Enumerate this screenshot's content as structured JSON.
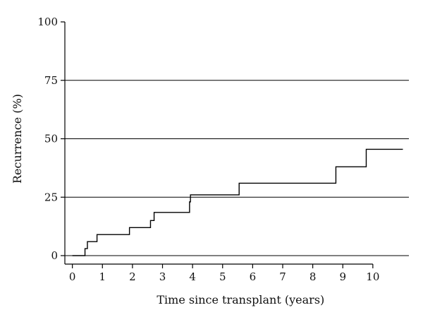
{
  "chart_data": {
    "type": "line",
    "step": true,
    "xlabel": "Time since transplant (years)",
    "ylabel": "Recurrence (%)",
    "xlim": [
      -0.25,
      11.2
    ],
    "ylim": [
      0,
      100
    ],
    "x_ticks": [
      0,
      1,
      2,
      3,
      4,
      5,
      6,
      7,
      8,
      9,
      10
    ],
    "y_ticks": [
      0,
      25,
      50,
      75,
      100
    ],
    "grid_y_values": [
      0,
      25,
      50,
      75
    ],
    "grid": true,
    "series": [
      {
        "x": [
          0,
          0.42,
          0.42,
          0.5,
          0.5,
          0.82,
          0.82,
          1.9,
          1.9,
          2.6,
          2.6,
          2.72,
          2.72,
          3.9,
          3.9,
          3.93,
          3.93,
          5.55,
          5.55,
          8.77,
          8.77,
          9.78,
          9.78,
          11.0
        ],
        "y": [
          0,
          0,
          3,
          3,
          6,
          6,
          9,
          9,
          12,
          12,
          15,
          15,
          18.5,
          18.5,
          23,
          23,
          26,
          26,
          31,
          31,
          38,
          38,
          45.5,
          45.5
        ],
        "color": "#000000"
      }
    ]
  }
}
